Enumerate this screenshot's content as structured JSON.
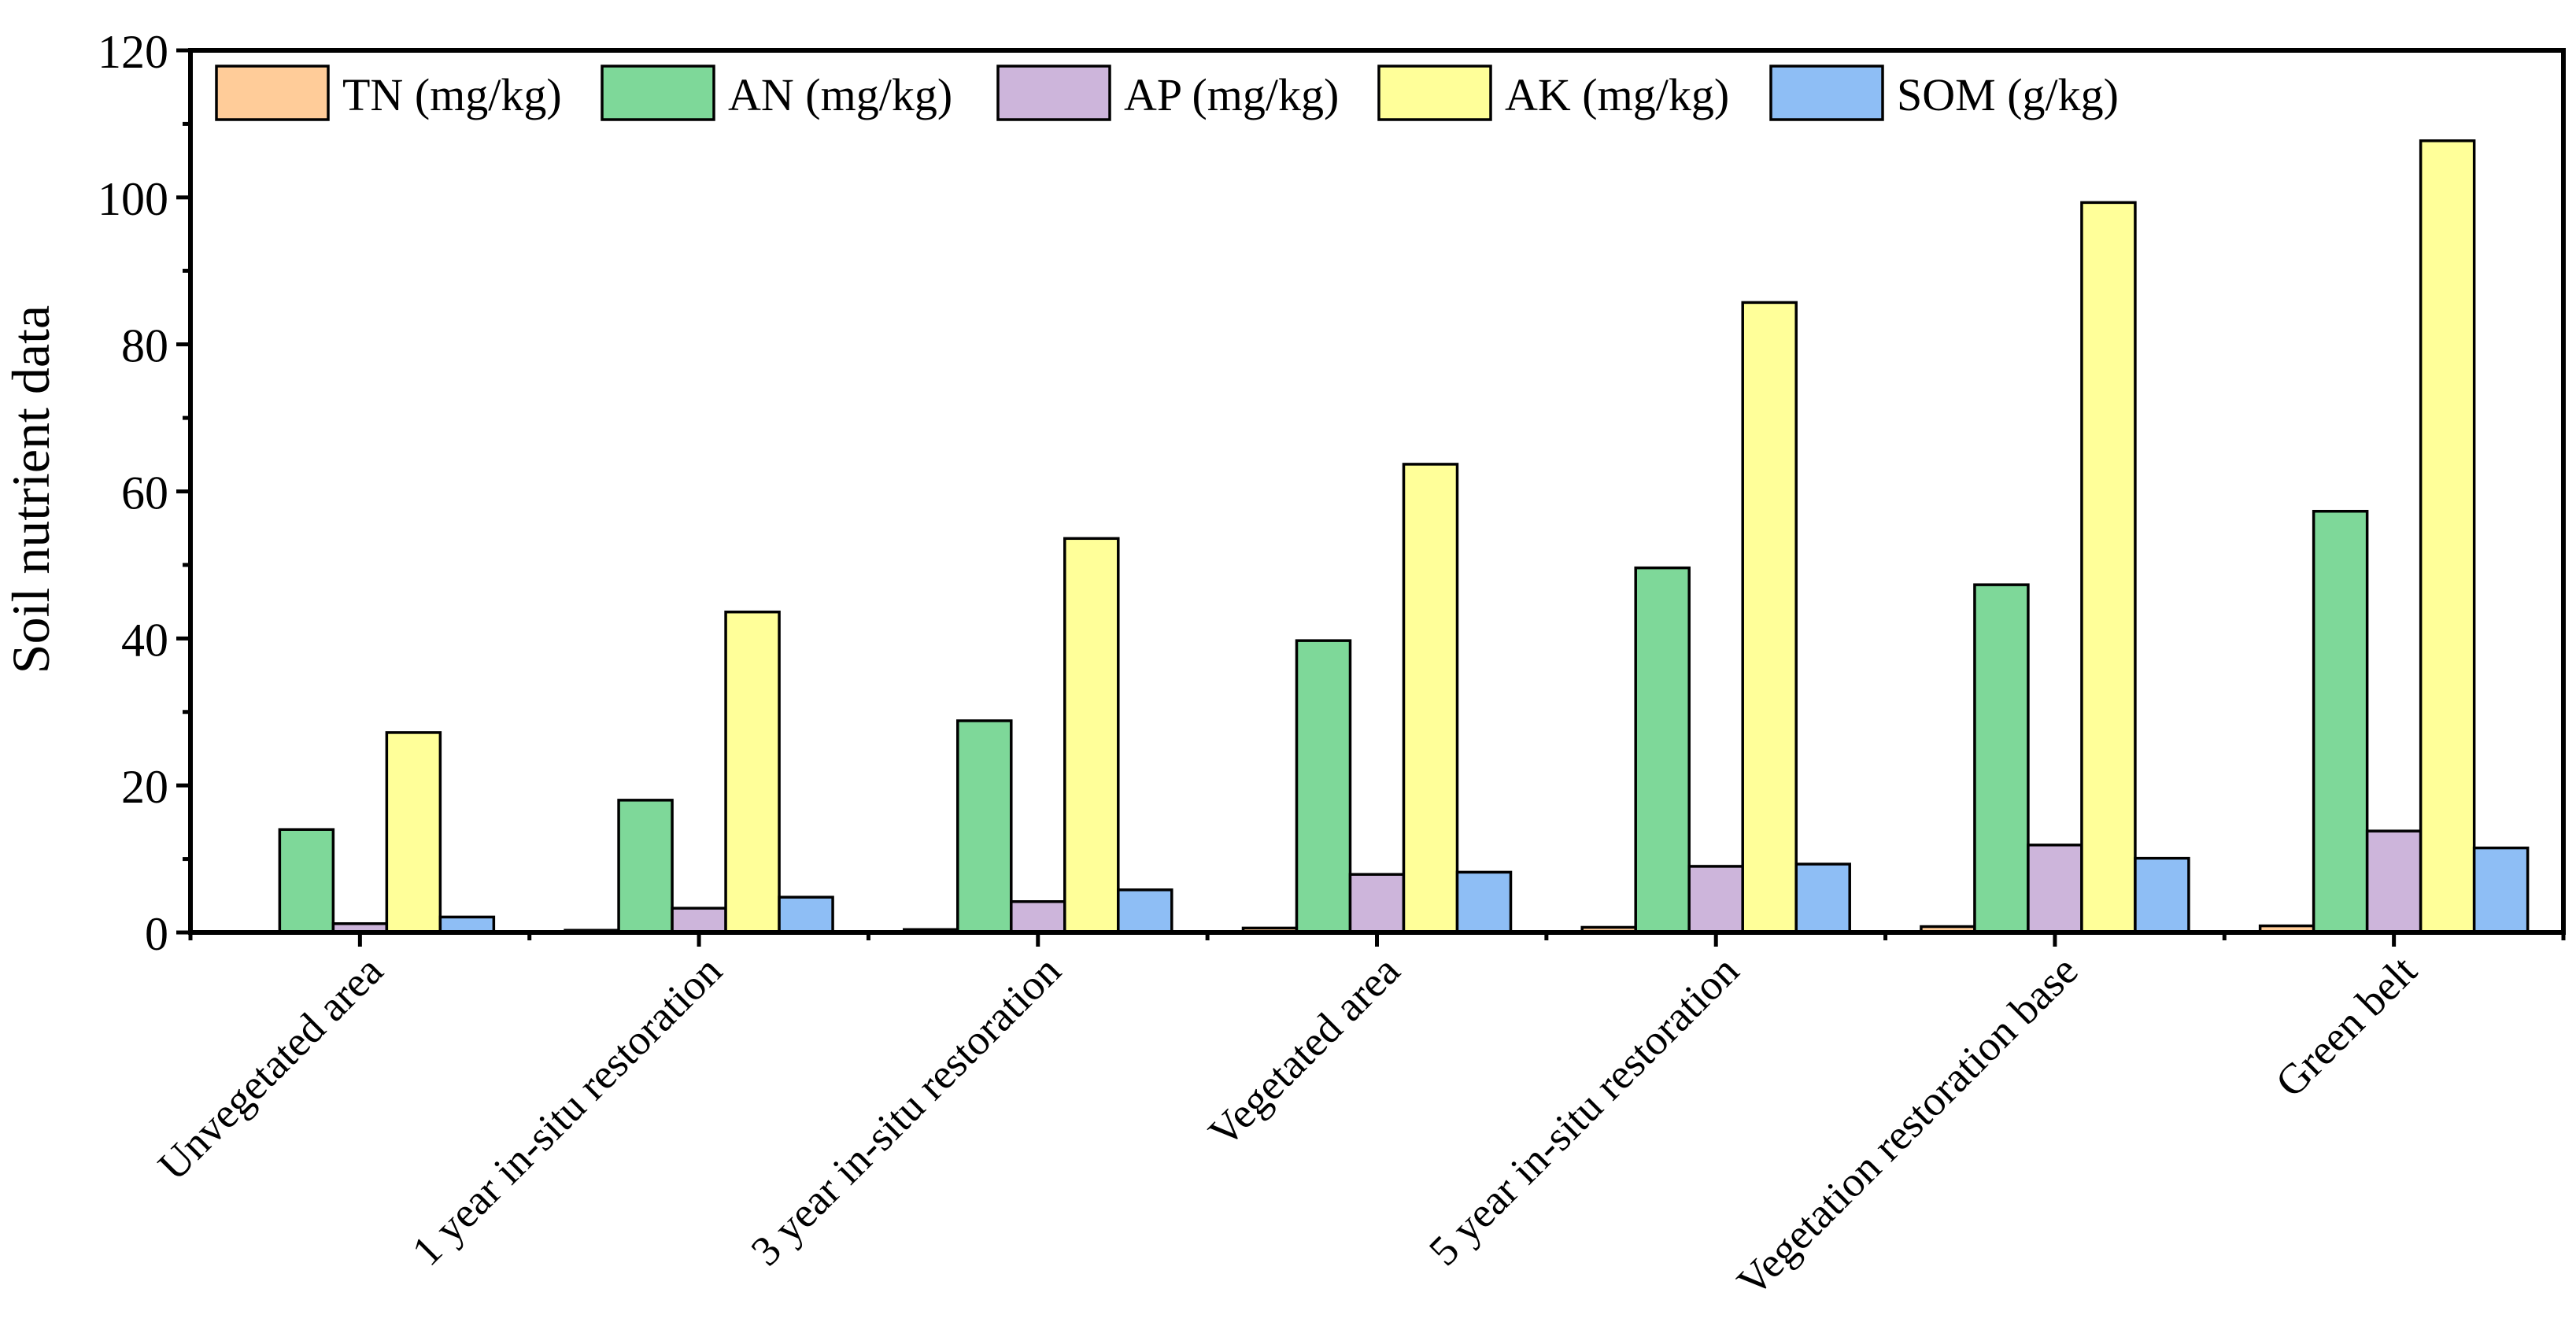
{
  "chart_data": {
    "type": "bar",
    "title": "",
    "xlabel": "",
    "ylabel": "Soil nutrient data",
    "ylim": [
      0,
      120
    ],
    "yticks": [
      "0",
      "20",
      "40",
      "60",
      "80",
      "100",
      "120"
    ],
    "categories": [
      "Unvegetated area",
      "1 year in-situ restoration",
      "3 year in-situ restoration",
      "Vegetated area",
      "5 year in-situ restoration",
      "Vegetation restoration base",
      "Green belt"
    ],
    "series": [
      {
        "name": "TN (mg/kg)",
        "color": "#FFCC99",
        "values": [
          0.1,
          0.3,
          0.4,
          0.6,
          0.7,
          0.8,
          0.9
        ]
      },
      {
        "name": "AN (mg/kg)",
        "color": "#7ED899",
        "values": [
          14,
          18,
          28.8,
          39.7,
          49.6,
          47.3,
          57.3
        ]
      },
      {
        "name": "AP (mg/kg)",
        "color": "#CDB5DB",
        "values": [
          1.2,
          3.3,
          4.2,
          7.9,
          9,
          11.9,
          13.8
        ]
      },
      {
        "name": "AK (mg/kg)",
        "color": "#FFFF99",
        "values": [
          27.2,
          43.6,
          53.6,
          63.7,
          85.7,
          99.3,
          107.7
        ]
      },
      {
        "name": "SOM (g/kg)",
        "color": "#8EBEF5",
        "values": [
          2.1,
          4.8,
          5.8,
          8.2,
          9.3,
          10.1,
          11.5
        ]
      }
    ],
    "legend_position": "top"
  }
}
